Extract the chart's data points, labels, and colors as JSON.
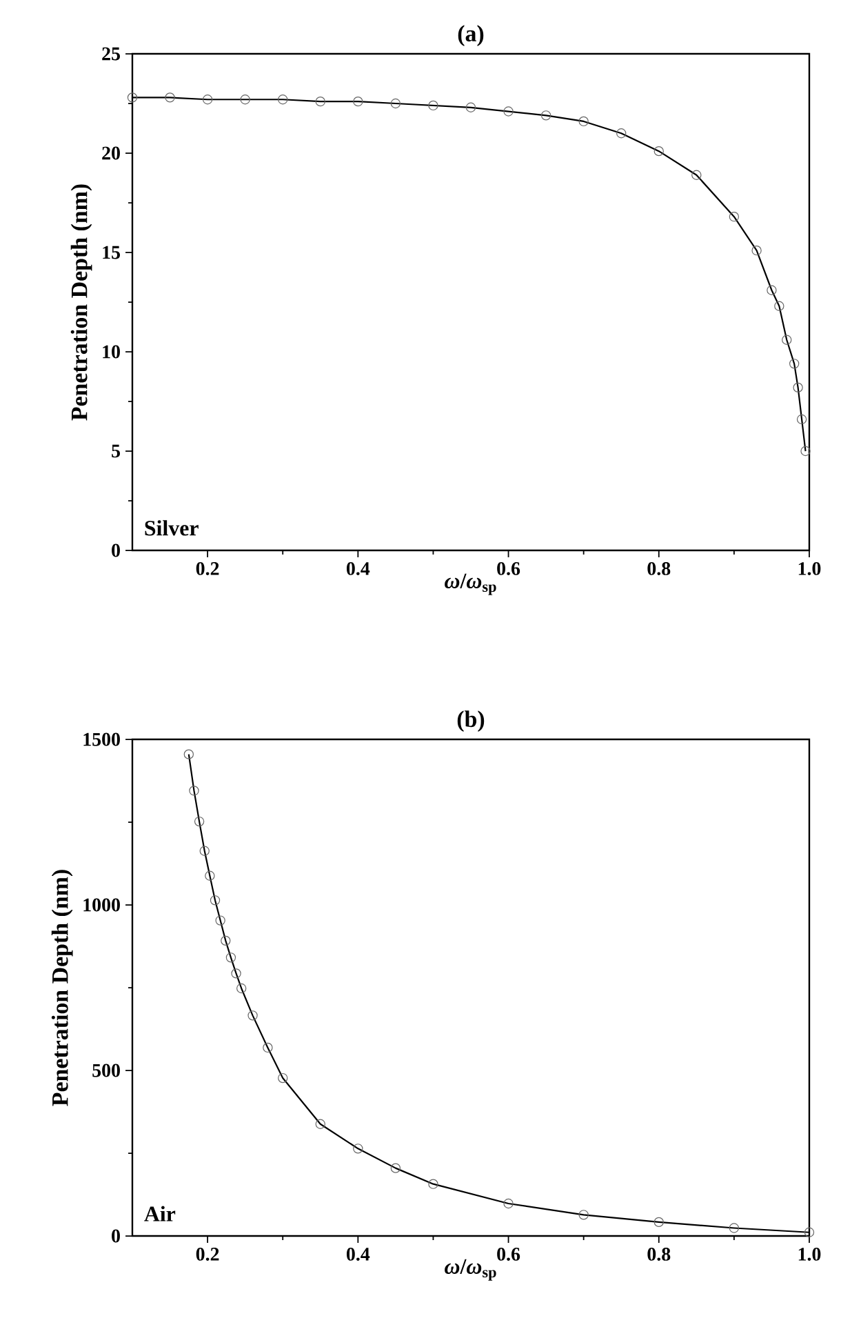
{
  "chart_data": [
    {
      "type": "line",
      "title": "(a)",
      "xlabel": "*ω*/*ω*$_{sp}$",
      "ylabel": "Penetration Depth (nm)",
      "annotations": [
        "Silver"
      ],
      "xlim": [
        0.1,
        1.0
      ],
      "xticks": [
        0.2,
        0.4,
        0.6,
        0.8,
        {
          "value": 1.0,
          "label": "1.0"
        }
      ],
      "ylim": [
        0,
        25
      ],
      "yticks": [
        0,
        5,
        10,
        15,
        20,
        25
      ],
      "marker": "circle",
      "line_style": "solid",
      "series": [
        {
          "color": "#000000",
          "x": [
            0.1,
            0.15,
            0.2,
            0.25,
            0.3,
            0.35,
            0.4,
            0.45,
            0.5,
            0.55,
            0.6,
            0.65,
            0.7,
            0.75,
            0.8,
            0.85,
            0.9,
            0.93,
            0.95,
            0.96,
            0.97,
            0.98,
            0.985,
            0.99,
            0.995
          ],
          "values": [
            22.8,
            22.8,
            22.7,
            22.7,
            22.7,
            22.6,
            22.6,
            22.5,
            22.4,
            22.3,
            22.1,
            21.9,
            21.6,
            21.0,
            20.1,
            18.9,
            16.8,
            15.1,
            13.1,
            12.3,
            10.6,
            9.4,
            8.2,
            6.6,
            5.0
          ]
        }
      ]
    },
    {
      "type": "line",
      "title": "(b)",
      "xlabel": "*ω*/*ω*$_{sp}$",
      "ylabel": "Penetration Depth (nm)",
      "annotations": [
        "Air"
      ],
      "xlim": [
        0.1,
        1.0
      ],
      "xticks": [
        0.2,
        0.4,
        0.6,
        0.8,
        {
          "value": 1.0,
          "label": "1.0"
        }
      ],
      "ylim": [
        0,
        1500
      ],
      "yticks": [
        0,
        500,
        1000,
        1500
      ],
      "marker": "circle",
      "line_style": "solid",
      "series": [
        {
          "color": "#000000",
          "x": [
            0.175,
            0.182,
            0.189,
            0.196,
            0.203,
            0.21,
            0.217,
            0.224,
            0.231,
            0.238,
            0.245,
            0.26,
            0.28,
            0.3,
            0.35,
            0.4,
            0.45,
            0.5,
            0.6,
            0.7,
            0.8,
            0.9,
            1.0
          ],
          "values": [
            1455,
            1345,
            1252,
            1163,
            1088,
            1014,
            953,
            892,
            841,
            793,
            748,
            666,
            569,
            477,
            338,
            264,
            205,
            157,
            98,
            64,
            42,
            24,
            11
          ]
        }
      ]
    }
  ]
}
